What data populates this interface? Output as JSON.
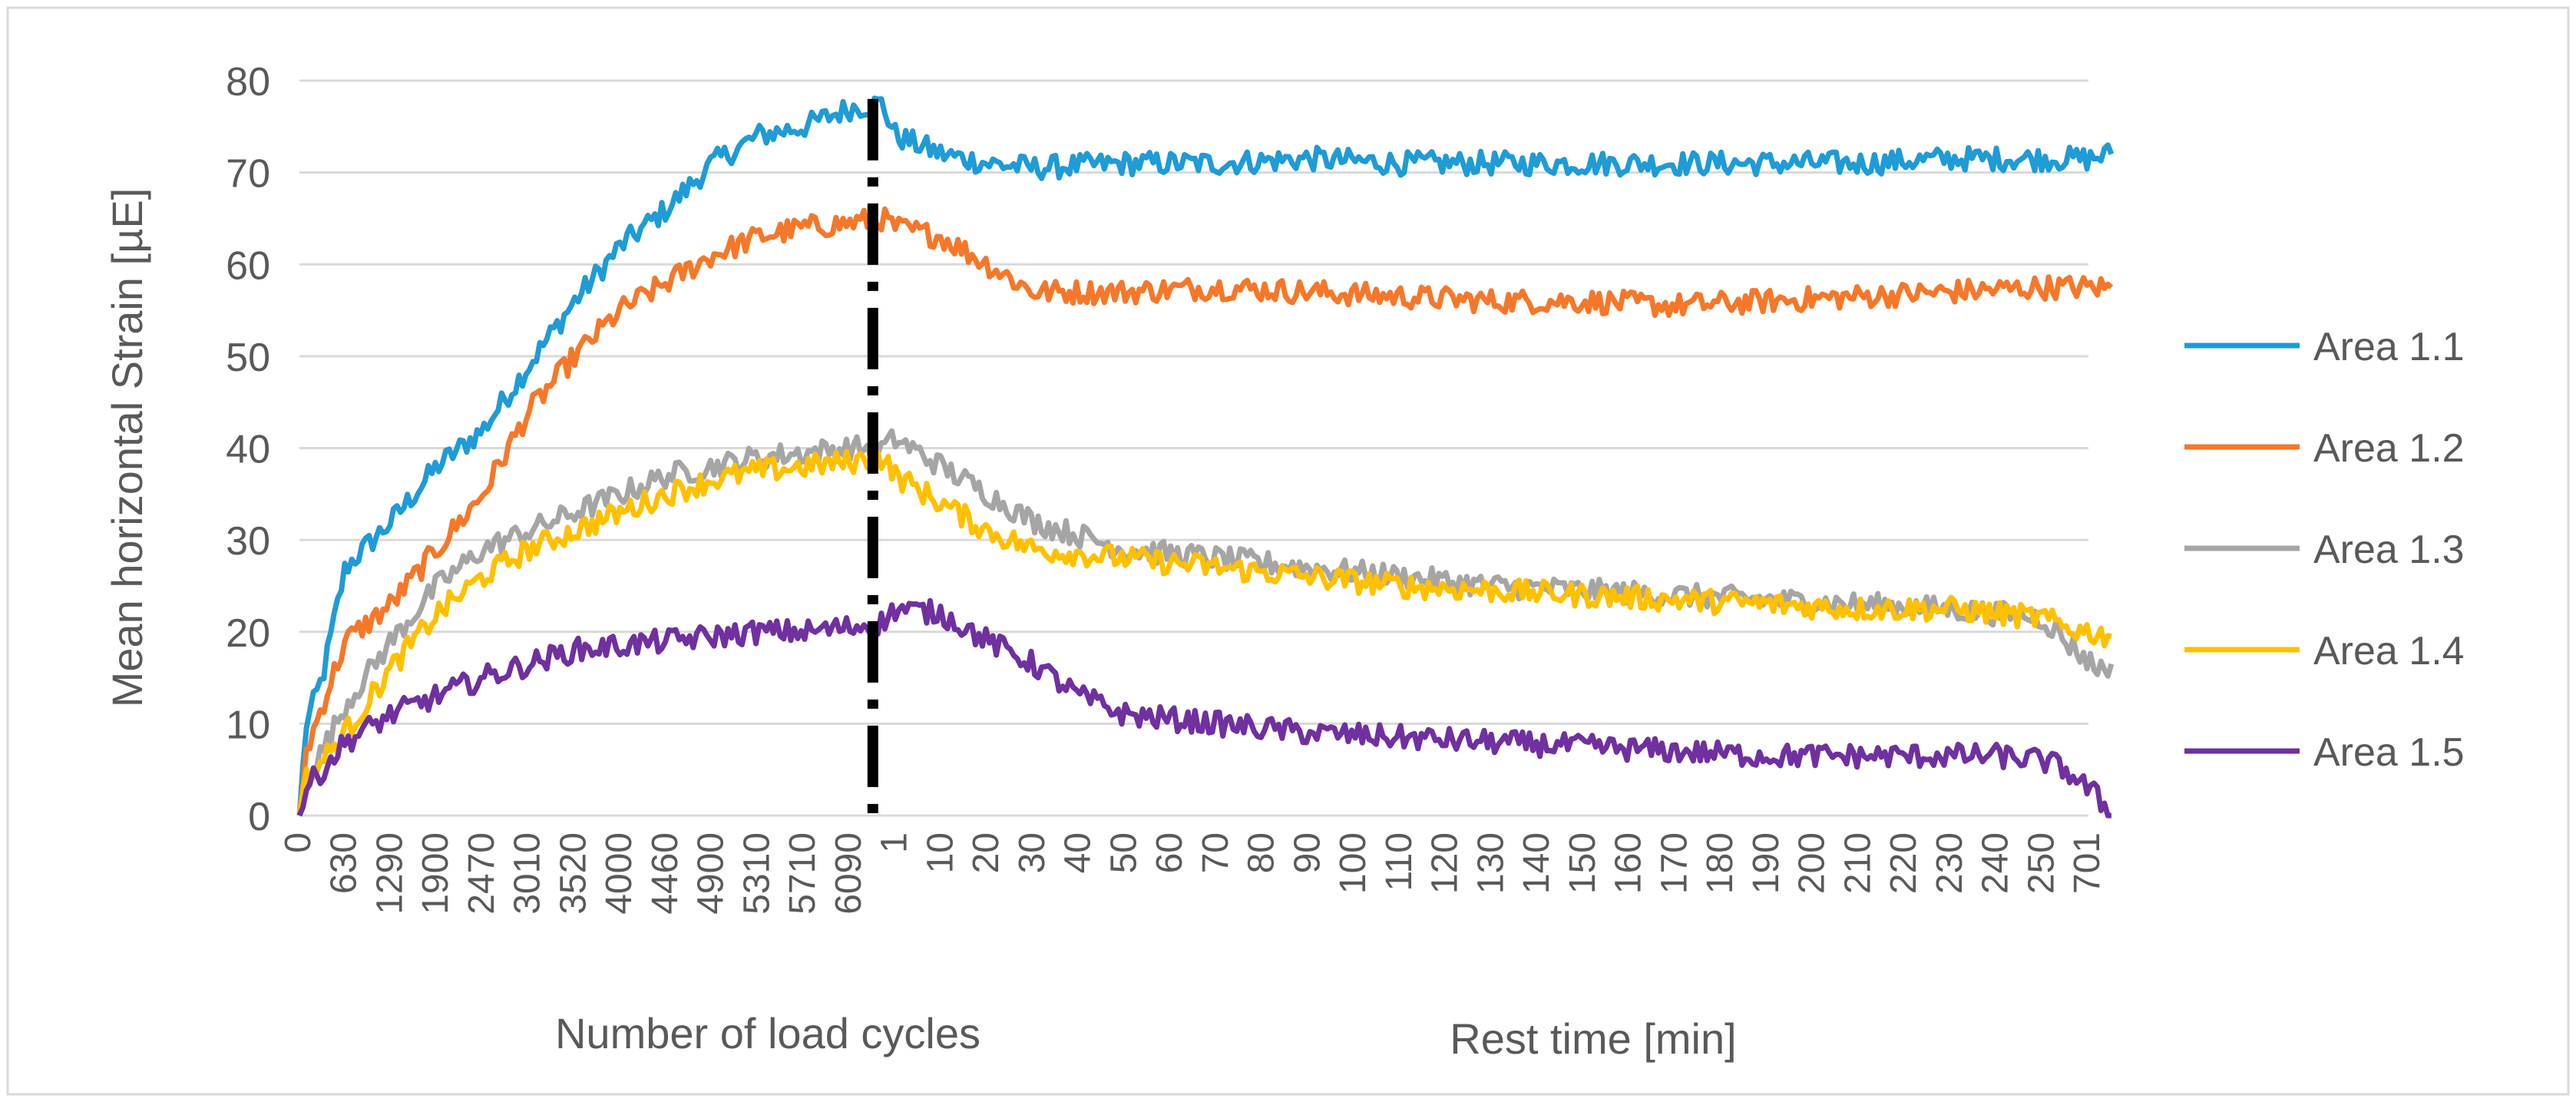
{
  "chart_data": {
    "type": "line",
    "title": "",
    "ylabel": "Mean horizontal Strain [µE]",
    "xlabel_left": "Number of load cycles",
    "xlabel_right": "Rest time [min]",
    "ylim": [
      0,
      80
    ],
    "yticks": [
      0,
      10,
      20,
      30,
      40,
      50,
      60,
      70,
      80
    ],
    "grid": true,
    "legend_position": "right",
    "divider_label": "end of loading / start of rest",
    "x_tick_labels": [
      "0",
      "630",
      "1290",
      "1900",
      "2470",
      "3010",
      "3520",
      "4000",
      "4460",
      "4900",
      "5310",
      "5710",
      "6090",
      "1",
      "10",
      "20",
      "30",
      "40",
      "50",
      "60",
      "70",
      "80",
      "90",
      "100",
      "110",
      "120",
      "130",
      "140",
      "150",
      "160",
      "170",
      "180",
      "190",
      "200",
      "210",
      "220",
      "230",
      "240",
      "250",
      "701"
    ],
    "divider_after_tick_index": 12,
    "series": [
      {
        "name": "Area 1.1",
        "color": "#1F9BD6",
        "points": [
          [
            0,
            0
          ],
          [
            0.15,
            10
          ],
          [
            0.5,
            15
          ],
          [
            1,
            27
          ],
          [
            2,
            32
          ],
          [
            3,
            38
          ],
          [
            4,
            42
          ],
          [
            5,
            49
          ],
          [
            6,
            56
          ],
          [
            7,
            62
          ],
          [
            8,
            66
          ],
          [
            9,
            71
          ],
          [
            10,
            74
          ],
          [
            11,
            75
          ],
          [
            12,
            77
          ],
          [
            12.7,
            77.5
          ],
          [
            13,
            74
          ],
          [
            14,
            72
          ],
          [
            15,
            71
          ],
          [
            16,
            70.5
          ],
          [
            18,
            71
          ],
          [
            20,
            71
          ],
          [
            22,
            71.5
          ],
          [
            24,
            71
          ],
          [
            26,
            71
          ],
          [
            28,
            71
          ],
          [
            30,
            71
          ],
          [
            32,
            71
          ],
          [
            34,
            71
          ],
          [
            36,
            71.5
          ],
          [
            38,
            71.5
          ],
          [
            39,
            71.5
          ],
          [
            39.5,
            72
          ]
        ]
      },
      {
        "name": "Area 1.2",
        "color": "#F5782A",
        "points": [
          [
            0,
            0
          ],
          [
            0.15,
            7
          ],
          [
            0.5,
            12
          ],
          [
            1,
            19
          ],
          [
            2,
            23
          ],
          [
            3,
            29
          ],
          [
            4,
            35
          ],
          [
            5,
            44
          ],
          [
            6,
            50
          ],
          [
            7,
            55
          ],
          [
            8,
            58
          ],
          [
            9,
            61
          ],
          [
            10,
            63
          ],
          [
            11,
            64
          ],
          [
            12,
            64.5
          ],
          [
            12.7,
            65
          ],
          [
            13,
            64
          ],
          [
            14,
            63
          ],
          [
            15,
            60
          ],
          [
            16,
            57
          ],
          [
            18,
            57
          ],
          [
            20,
            57.5
          ],
          [
            22,
            57
          ],
          [
            24,
            56.5
          ],
          [
            26,
            56
          ],
          [
            28,
            56
          ],
          [
            30,
            55.5
          ],
          [
            32,
            56
          ],
          [
            34,
            56.5
          ],
          [
            36,
            57
          ],
          [
            38,
            57.5
          ],
          [
            39,
            57.5
          ],
          [
            39.5,
            57.5
          ]
        ]
      },
      {
        "name": "Area 1.3",
        "color": "#A5A5A5",
        "points": [
          [
            0,
            0
          ],
          [
            0.15,
            4
          ],
          [
            0.5,
            7
          ],
          [
            1,
            12
          ],
          [
            2,
            19
          ],
          [
            3,
            25
          ],
          [
            4,
            29
          ],
          [
            5,
            31
          ],
          [
            6,
            33
          ],
          [
            7,
            35
          ],
          [
            8,
            37
          ],
          [
            9,
            38
          ],
          [
            10,
            39
          ],
          [
            11,
            39.5
          ],
          [
            12,
            40
          ],
          [
            12.7,
            40
          ],
          [
            13,
            41
          ],
          [
            14,
            38
          ],
          [
            15,
            35
          ],
          [
            16,
            32
          ],
          [
            18,
            29
          ],
          [
            20,
            28
          ],
          [
            22,
            27
          ],
          [
            24,
            26
          ],
          [
            26,
            25
          ],
          [
            28,
            24.5
          ],
          [
            30,
            24
          ],
          [
            32,
            23.5
          ],
          [
            34,
            23
          ],
          [
            36,
            22.5
          ],
          [
            37,
            22
          ],
          [
            38,
            21.5
          ],
          [
            38.5,
            19
          ],
          [
            39.2,
            16
          ],
          [
            39.5,
            16.5
          ]
        ]
      },
      {
        "name": "Area 1.4",
        "color": "#FFC000",
        "points": [
          [
            0,
            0
          ],
          [
            0.15,
            4
          ],
          [
            0.5,
            6
          ],
          [
            1,
            9
          ],
          [
            2,
            16
          ],
          [
            3,
            22
          ],
          [
            4,
            26
          ],
          [
            5,
            29
          ],
          [
            6,
            31
          ],
          [
            7,
            33
          ],
          [
            8,
            35
          ],
          [
            9,
            36.5
          ],
          [
            10,
            37.5
          ],
          [
            11,
            38
          ],
          [
            12,
            38.5
          ],
          [
            12.7,
            39
          ],
          [
            13,
            37
          ],
          [
            14,
            34
          ],
          [
            15,
            31
          ],
          [
            16,
            29
          ],
          [
            18,
            28
          ],
          [
            20,
            27
          ],
          [
            22,
            26
          ],
          [
            24,
            25
          ],
          [
            26,
            24.5
          ],
          [
            28,
            24
          ],
          [
            30,
            23.5
          ],
          [
            32,
            23
          ],
          [
            34,
            22.5
          ],
          [
            36,
            22.5
          ],
          [
            37,
            22
          ],
          [
            38,
            21.5
          ],
          [
            38.5,
            20.5
          ],
          [
            39.5,
            19.5
          ]
        ]
      },
      {
        "name": "Area 1.5",
        "color": "#7030A0",
        "points": [
          [
            0,
            0
          ],
          [
            0.15,
            3
          ],
          [
            0.5,
            5
          ],
          [
            1,
            8
          ],
          [
            2,
            11
          ],
          [
            3,
            13
          ],
          [
            4,
            15
          ],
          [
            5,
            16.5
          ],
          [
            6,
            18
          ],
          [
            7,
            18.5
          ],
          [
            8,
            19
          ],
          [
            9,
            19.5
          ],
          [
            10,
            20
          ],
          [
            11,
            20
          ],
          [
            12,
            20.5
          ],
          [
            12.7,
            21
          ],
          [
            13,
            22.5
          ],
          [
            14,
            22
          ],
          [
            15,
            19
          ],
          [
            16,
            16.5
          ],
          [
            17,
            13
          ],
          [
            18,
            11
          ],
          [
            20,
            10
          ],
          [
            22,
            9
          ],
          [
            24,
            8.5
          ],
          [
            26,
            8
          ],
          [
            28,
            7.5
          ],
          [
            30,
            7
          ],
          [
            32,
            6.5
          ],
          [
            34,
            6.5
          ],
          [
            36,
            6.5
          ],
          [
            37,
            6.5
          ],
          [
            38,
            6
          ],
          [
            38.5,
            5
          ],
          [
            39.2,
            2
          ],
          [
            39.5,
            0
          ]
        ]
      }
    ]
  }
}
